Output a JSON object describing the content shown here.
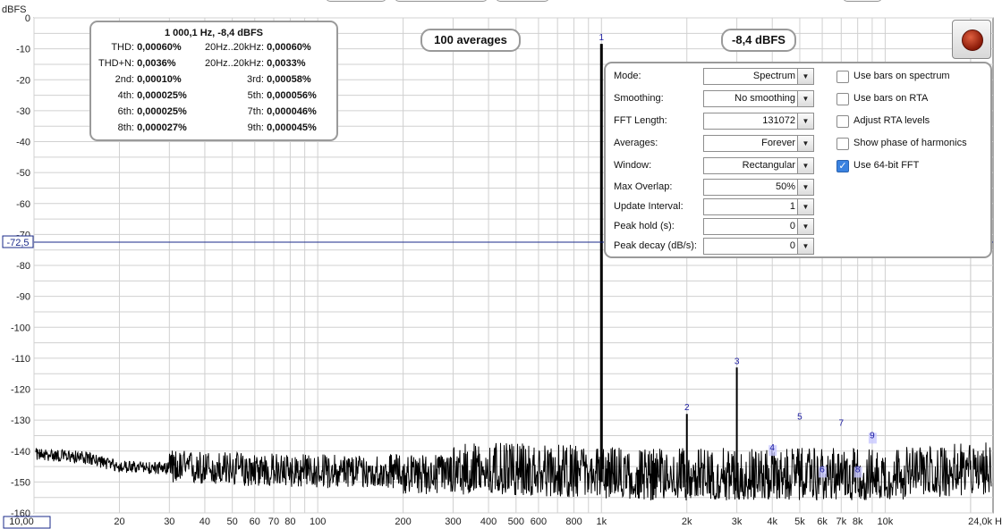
{
  "chart_data": {
    "type": "line",
    "ylabel": "dBFS",
    "xscale": "log",
    "xlim": [
      10,
      24000
    ],
    "ylim": [
      -160,
      0
    ],
    "grid": true,
    "x_ticks": [
      {
        "v": 10,
        "label": "10,00"
      },
      {
        "v": 20,
        "label": "20"
      },
      {
        "v": 30,
        "label": "30"
      },
      {
        "v": 40,
        "label": "40"
      },
      {
        "v": 50,
        "label": "50"
      },
      {
        "v": 60,
        "label": "60"
      },
      {
        "v": 70,
        "label": "70"
      },
      {
        "v": 80,
        "label": "80"
      },
      {
        "v": 100,
        "label": "100"
      },
      {
        "v": 200,
        "label": "200"
      },
      {
        "v": 300,
        "label": "300"
      },
      {
        "v": 400,
        "label": "400"
      },
      {
        "v": 500,
        "label": "500"
      },
      {
        "v": 600,
        "label": "600"
      },
      {
        "v": 800,
        "label": "800"
      },
      {
        "v": 1000,
        "label": "1k"
      },
      {
        "v": 2000,
        "label": "2k"
      },
      {
        "v": 3000,
        "label": "3k"
      },
      {
        "v": 4000,
        "label": "4k"
      },
      {
        "v": 5000,
        "label": "5k"
      },
      {
        "v": 6000,
        "label": "6k"
      },
      {
        "v": 7000,
        "label": "7k"
      },
      {
        "v": 8000,
        "label": "8k"
      },
      {
        "v": 10000,
        "label": "10k"
      },
      {
        "v": 24000,
        "label": "24,0k H"
      }
    ],
    "y_ticks": [
      {
        "v": 0,
        "label": "0"
      },
      {
        "v": -10,
        "label": "-10"
      },
      {
        "v": -20,
        "label": "-20"
      },
      {
        "v": -30,
        "label": "-30"
      },
      {
        "v": -40,
        "label": "-40"
      },
      {
        "v": -50,
        "label": "-50"
      },
      {
        "v": -60,
        "label": "-60"
      },
      {
        "v": -70,
        "label": "-70"
      },
      {
        "v": -80,
        "label": "-80"
      },
      {
        "v": -90,
        "label": "-90"
      },
      {
        "v": -100,
        "label": "-100"
      },
      {
        "v": -110,
        "label": "-110"
      },
      {
        "v": -120,
        "label": "-120"
      },
      {
        "v": -130,
        "label": "-130"
      },
      {
        "v": -140,
        "label": "-140"
      },
      {
        "v": -150,
        "label": "-150"
      },
      {
        "v": -160,
        "label": "-160"
      }
    ],
    "cursor_level": {
      "v": -72.5,
      "label": "-72,5"
    },
    "peaks": [
      {
        "label": "1",
        "x": 1000,
        "y": -8.4
      },
      {
        "label": "2",
        "x": 2000,
        "y": -128
      },
      {
        "label": "3",
        "x": 3000,
        "y": -113
      },
      {
        "label": "4",
        "x": 4000,
        "y": -141
      },
      {
        "label": "5",
        "x": 5000,
        "y": -131
      },
      {
        "label": "6",
        "x": 6000,
        "y": -148
      },
      {
        "label": "7",
        "x": 7000,
        "y": -133
      },
      {
        "label": "8",
        "x": 8000,
        "y": -148
      },
      {
        "label": "9",
        "x": 9000,
        "y": -137
      }
    ],
    "noise_floor": [
      {
        "x": 10,
        "y": -141
      },
      {
        "x": 15,
        "y": -142
      },
      {
        "x": 20,
        "y": -145
      },
      {
        "x": 40,
        "y": -146
      },
      {
        "x": 100,
        "y": -147
      },
      {
        "x": 300,
        "y": -147
      },
      {
        "x": 800,
        "y": -148
      },
      {
        "x": 1500,
        "y": -149
      },
      {
        "x": 5000,
        "y": -149
      },
      {
        "x": 10000,
        "y": -149
      },
      {
        "x": 24000,
        "y": -147
      }
    ]
  },
  "stats": {
    "header": "1 000,1 Hz, -8,4 dBFS",
    "rows": [
      [
        {
          "label": "THD:",
          "value": "0,00060%"
        },
        {
          "label": "20Hz..20kHz:",
          "value": "0,00060%"
        }
      ],
      [
        {
          "label": "THD+N:",
          "value": "0,0036%"
        },
        {
          "label": "20Hz..20kHz:",
          "value": "0,0033%"
        }
      ],
      [
        {
          "label": "2nd:",
          "value": "0,00010%"
        },
        {
          "label": "3rd:",
          "value": "0,00058%"
        }
      ],
      [
        {
          "label": "4th:",
          "value": "0,000025%"
        },
        {
          "label": "5th:",
          "value": "0,000056%"
        }
      ],
      [
        {
          "label": "6th:",
          "value": "0,000025%"
        },
        {
          "label": "7th:",
          "value": "0,000046%"
        }
      ],
      [
        {
          "label": "8th:",
          "value": "0,000027%"
        },
        {
          "label": "9th:",
          "value": "0,000045%"
        }
      ]
    ]
  },
  "averages_label": "100 averages",
  "level_label": "-8,4 dBFS",
  "settings": {
    "rows": [
      {
        "label": "Mode:",
        "value": "Spectrum"
      },
      {
        "label": "Smoothing:",
        "value": "No smoothing"
      },
      {
        "label": "FFT Length:",
        "value": "131072"
      },
      {
        "label": "Averages:",
        "value": "Forever"
      },
      {
        "label": "Window:",
        "value": "Rectangular"
      },
      {
        "label": "Max Overlap:",
        "value": "50%"
      },
      {
        "label": "Update Interval:",
        "value": "1"
      },
      {
        "label": "Peak hold (s):",
        "value": "0"
      },
      {
        "label": "Peak decay (dB/s):",
        "value": "0"
      }
    ],
    "checks": [
      {
        "label": "Use bars on spectrum",
        "checked": false
      },
      {
        "label": "Use bars on RTA",
        "checked": false
      },
      {
        "label": "Adjust RTA levels",
        "checked": false
      },
      {
        "label": "Show phase of harmonics",
        "checked": false
      },
      {
        "label": "Use 64-bit FFT",
        "checked": true
      }
    ]
  },
  "colors": {
    "trace": "#000000",
    "grid": "#d0d0d0",
    "marker": "#1a1aa0",
    "cursor": "#1a2a8a",
    "checkbox_on": "#3a82e0"
  }
}
